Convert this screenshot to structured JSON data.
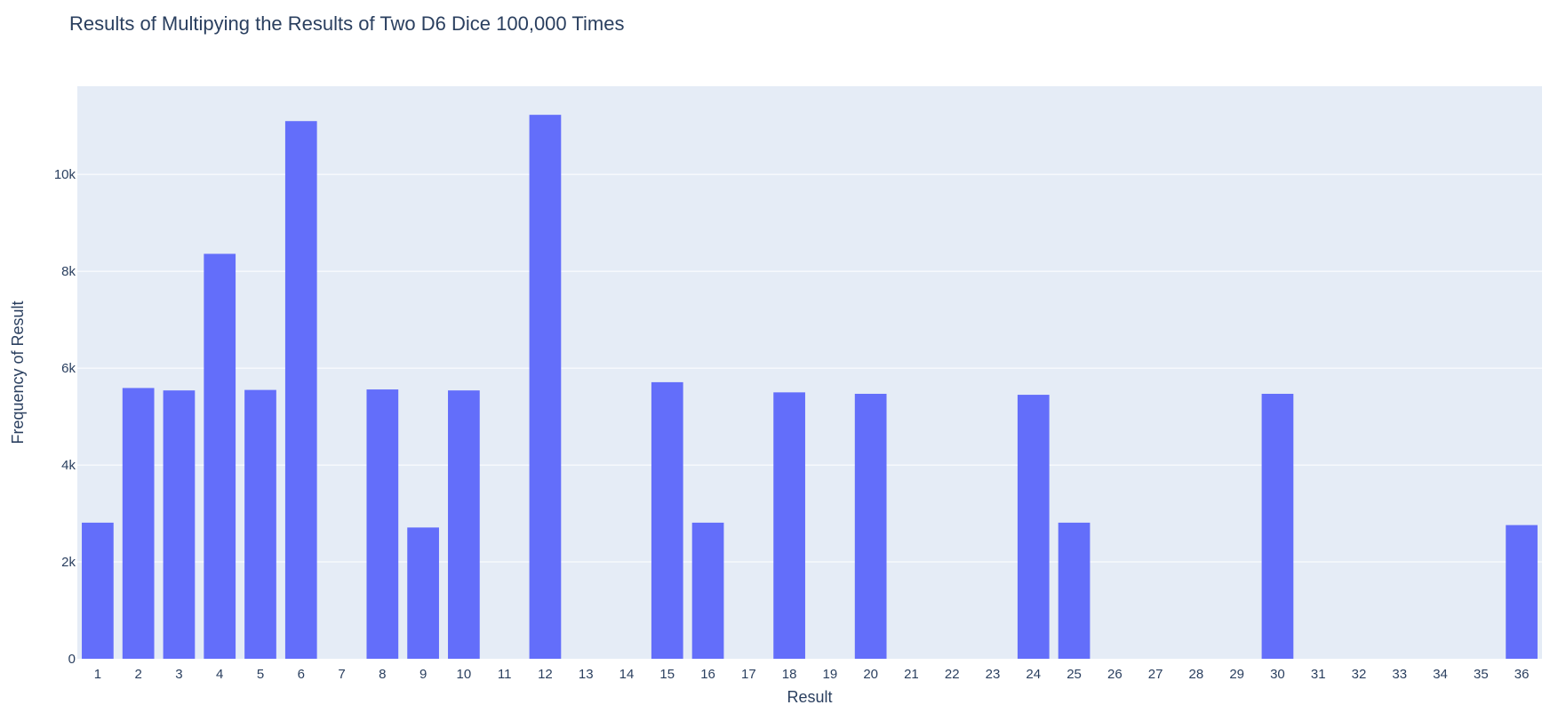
{
  "colors": {
    "plot_bg": "#E5ECF6",
    "grid": "#FFFFFF",
    "bar": "#636EFA",
    "text": "#2A3F5F"
  },
  "chart_data": {
    "type": "bar",
    "title": "Results of Multipying the Results of Two D6 Dice 100,000 Times",
    "xlabel": "Result",
    "ylabel": "Frequency of Result",
    "categories": [
      "1",
      "2",
      "3",
      "4",
      "5",
      "6",
      "7",
      "8",
      "9",
      "10",
      "11",
      "12",
      "13",
      "14",
      "15",
      "16",
      "17",
      "18",
      "19",
      "20",
      "21",
      "22",
      "23",
      "24",
      "25",
      "26",
      "27",
      "28",
      "29",
      "30",
      "31",
      "32",
      "33",
      "34",
      "35",
      "36"
    ],
    "values": [
      2810,
      5590,
      5540,
      8360,
      5550,
      11100,
      0,
      5560,
      2710,
      5540,
      0,
      11230,
      0,
      0,
      5710,
      2810,
      0,
      5500,
      0,
      5470,
      0,
      0,
      0,
      5450,
      2810,
      0,
      0,
      0,
      0,
      5470,
      0,
      0,
      0,
      0,
      0,
      2760
    ],
    "ylim": [
      0,
      11820
    ],
    "yticks": [
      0,
      2000,
      4000,
      6000,
      8000,
      10000
    ],
    "ytick_labels": [
      "0",
      "2k",
      "4k",
      "6k",
      "8k",
      "10k"
    ],
    "grid": true
  }
}
